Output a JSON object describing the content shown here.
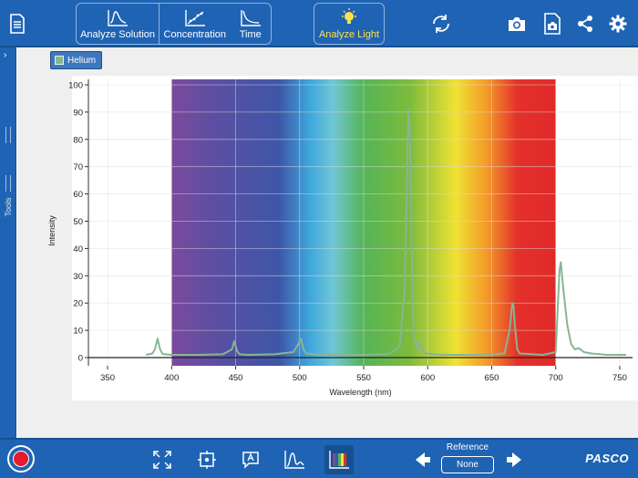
{
  "toolbar": {
    "analyze_solution_label": "Analyze Solution",
    "concentration_label": "Concentration",
    "time_label": "Time",
    "analyze_light_label": "Analyze Light"
  },
  "tools": {
    "label": "Tools"
  },
  "legend": {
    "label": "Helium",
    "color": "#87b594"
  },
  "reference": {
    "title": "Reference",
    "value": "None"
  },
  "brand": "PASCO",
  "colors": {
    "bar": "#1f63b4",
    "active": "#ffe24a",
    "record": "#e21c2c"
  },
  "chart_data": {
    "type": "line",
    "xlabel": "Wavelength (nm)",
    "ylabel": "Intensity",
    "xlim": [
      335,
      760
    ],
    "ylim": [
      -3,
      102
    ],
    "x_ticks": [
      350,
      400,
      450,
      500,
      550,
      600,
      650,
      700,
      750
    ],
    "y_ticks": [
      0,
      10,
      20,
      30,
      40,
      50,
      60,
      70,
      80,
      90,
      100
    ],
    "grid": true,
    "visible_band": [
      400,
      700
    ],
    "series": [
      {
        "name": "Helium",
        "color": "#87b594",
        "x": [
          380,
          385,
          387,
          389,
          391,
          393,
          400,
          420,
          440,
          447,
          449,
          451,
          453,
          460,
          480,
          495,
          499,
          501,
          503,
          505,
          520,
          550,
          570,
          578,
          582,
          584,
          585,
          586,
          587.5,
          589,
          592,
          594,
          596,
          598,
          610,
          640,
          660,
          664,
          666,
          667,
          668,
          670,
          672,
          690,
          700,
          701,
          703,
          704,
          706,
          709,
          712,
          715,
          718,
          722,
          728,
          740,
          755
        ],
        "y": [
          1,
          1.5,
          3,
          7,
          3,
          1.3,
          1,
          1,
          1.2,
          3,
          6,
          2.5,
          1.2,
          1,
          1.2,
          2,
          5,
          7,
          3,
          1.5,
          1,
          1,
          1.3,
          4,
          25,
          72,
          91,
          82,
          40,
          8,
          3,
          6,
          3,
          1.5,
          1,
          1,
          1.5,
          10,
          20,
          19,
          12,
          3,
          1.5,
          1,
          2,
          12,
          32,
          35,
          25,
          12,
          5,
          3,
          3.5,
          2,
          1.5,
          1,
          1
        ]
      }
    ]
  }
}
